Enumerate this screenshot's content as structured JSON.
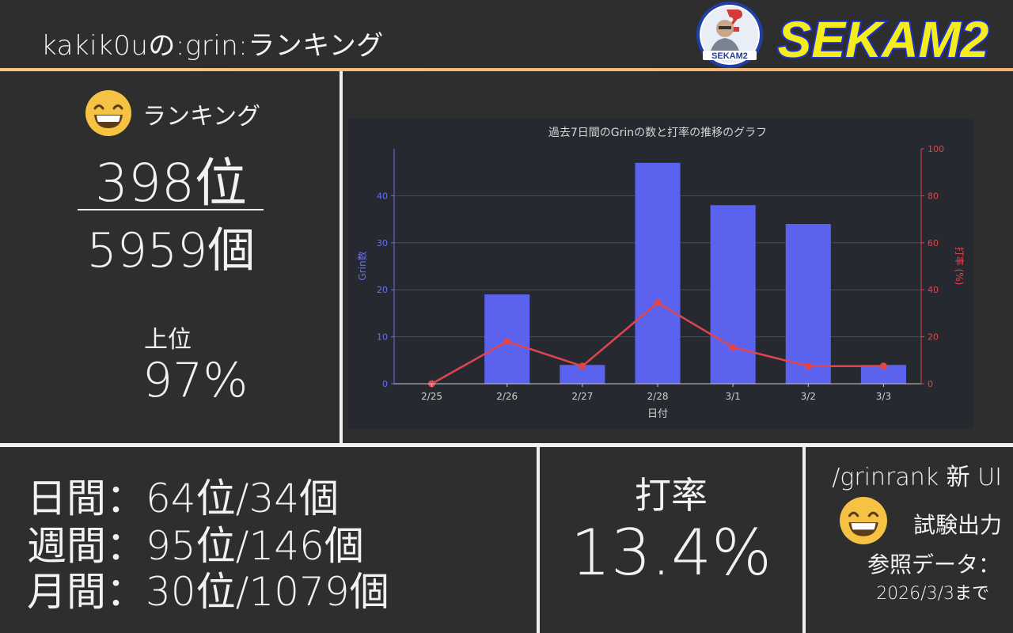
{
  "header": {
    "title": "kakik0uの:grin:ランキング",
    "logo_text": "SEKAM2",
    "logo_badge_text": "SEKAM2"
  },
  "ranking": {
    "label": "ランキング",
    "position": "398位",
    "total": "5959個",
    "top_label": "上位",
    "top_value": "97%"
  },
  "stats": {
    "daily": "日間：64位/34個",
    "weekly": "週間：95位/146個",
    "monthly": "月間：30位/1079個"
  },
  "rate": {
    "label": "打率",
    "value": "13.4%"
  },
  "info": {
    "new_ui": "/grinrank 新 UI",
    "trial": "試験出力",
    "ref_label": "参照データ：",
    "ref_date": "2026/3/3まで"
  },
  "colors": {
    "bar": "#5b63ee",
    "line": "#e0454d",
    "accent_line": "#f5bf7a",
    "emoji_face": "#f6c244"
  },
  "chart_data": {
    "type": "bar",
    "title": "過去7日間のGrinの数と打率の推移のグラフ",
    "xlabel": "日付",
    "ylabel": "Grin数",
    "y2label": "打率 (%)",
    "categories": [
      "2/25",
      "2/26",
      "2/27",
      "2/28",
      "3/1",
      "3/2",
      "3/3"
    ],
    "series": [
      {
        "name": "Grin数",
        "type": "bar",
        "axis": "left",
        "values": [
          0,
          19,
          4,
          47,
          38,
          34,
          4
        ]
      },
      {
        "name": "打率 (%)",
        "type": "line",
        "axis": "right",
        "values": [
          0,
          18,
          7.5,
          34.5,
          15.5,
          7.5,
          7.5
        ]
      }
    ],
    "ylim": [
      0,
      50
    ],
    "y2lim": [
      0,
      100
    ],
    "yticks": [
      0,
      10,
      20,
      30,
      40
    ],
    "y2ticks": [
      0,
      20,
      40,
      60,
      80,
      100
    ],
    "grid": true
  }
}
